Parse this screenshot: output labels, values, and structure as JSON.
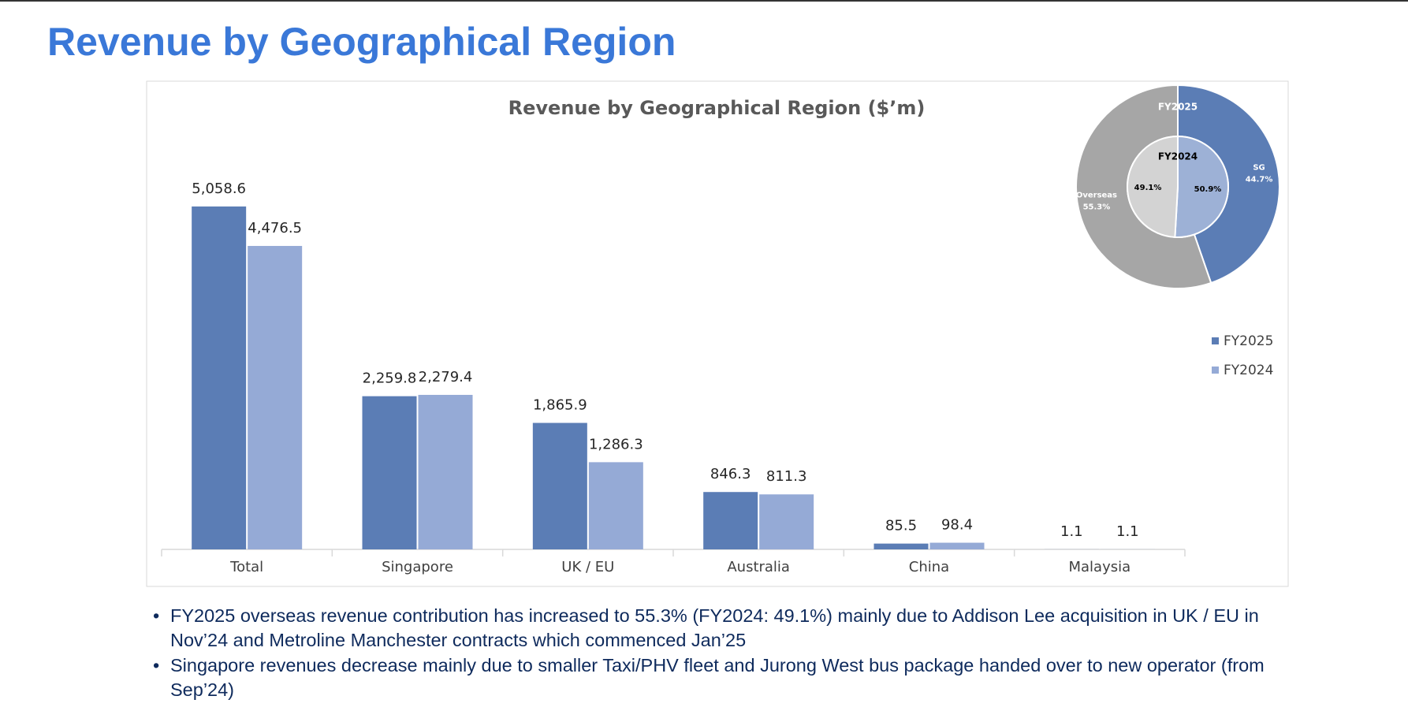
{
  "title": "Revenue by Geographical Region",
  "chart_data": [
    {
      "type": "bar",
      "title": "Revenue by Geographical Region ($’m)",
      "categories": [
        "Total",
        "Singapore",
        "UK / EU",
        "Australia",
        "China",
        "Malaysia"
      ],
      "series": [
        {
          "name": "FY2025",
          "color": "#5b7db5",
          "values": [
            5058.6,
            2259.8,
            1865.9,
            846.3,
            85.5,
            1.1
          ],
          "value_labels": [
            "5,058.6",
            "2,259.8",
            "1,865.9",
            "846.3",
            "85.5",
            "1.1"
          ]
        },
        {
          "name": "FY2024",
          "color": "#95aad6",
          "values": [
            4476.5,
            2279.4,
            1286.3,
            811.3,
            98.4,
            1.1
          ],
          "value_labels": [
            "4,476.5",
            "2,279.4",
            "1,286.3",
            "811.3",
            "98.4",
            "1.1"
          ]
        }
      ],
      "ylim": [
        0,
        6000
      ],
      "legend": "right"
    },
    {
      "type": "pie",
      "categories": [
        "SG",
        "Overseas"
      ],
      "series": [
        {
          "name": "FY2025",
          "values": [
            44.7,
            55.3
          ],
          "value_labels": [
            "44.7%",
            "55.3%"
          ],
          "colors": [
            "#5b7db5",
            "#a6a6a6"
          ]
        },
        {
          "name": "FY2024",
          "values": [
            50.9,
            49.1
          ],
          "value_labels": [
            "50.9%",
            "49.1%"
          ],
          "colors": [
            "#9db1d6",
            "#d3d3d3"
          ]
        }
      ]
    }
  ],
  "bullets": [
    "FY2025 overseas revenue contribution has increased to 55.3% (FY2024: 49.1%) mainly due to Addison Lee acquisition in UK / EU in Nov’24 and Metroline Manchester contracts which commenced Jan’25",
    "Singapore revenues decrease mainly due to smaller Taxi/PHV fleet and Jurong West bus package handed over to new operator (from Sep’24)"
  ]
}
